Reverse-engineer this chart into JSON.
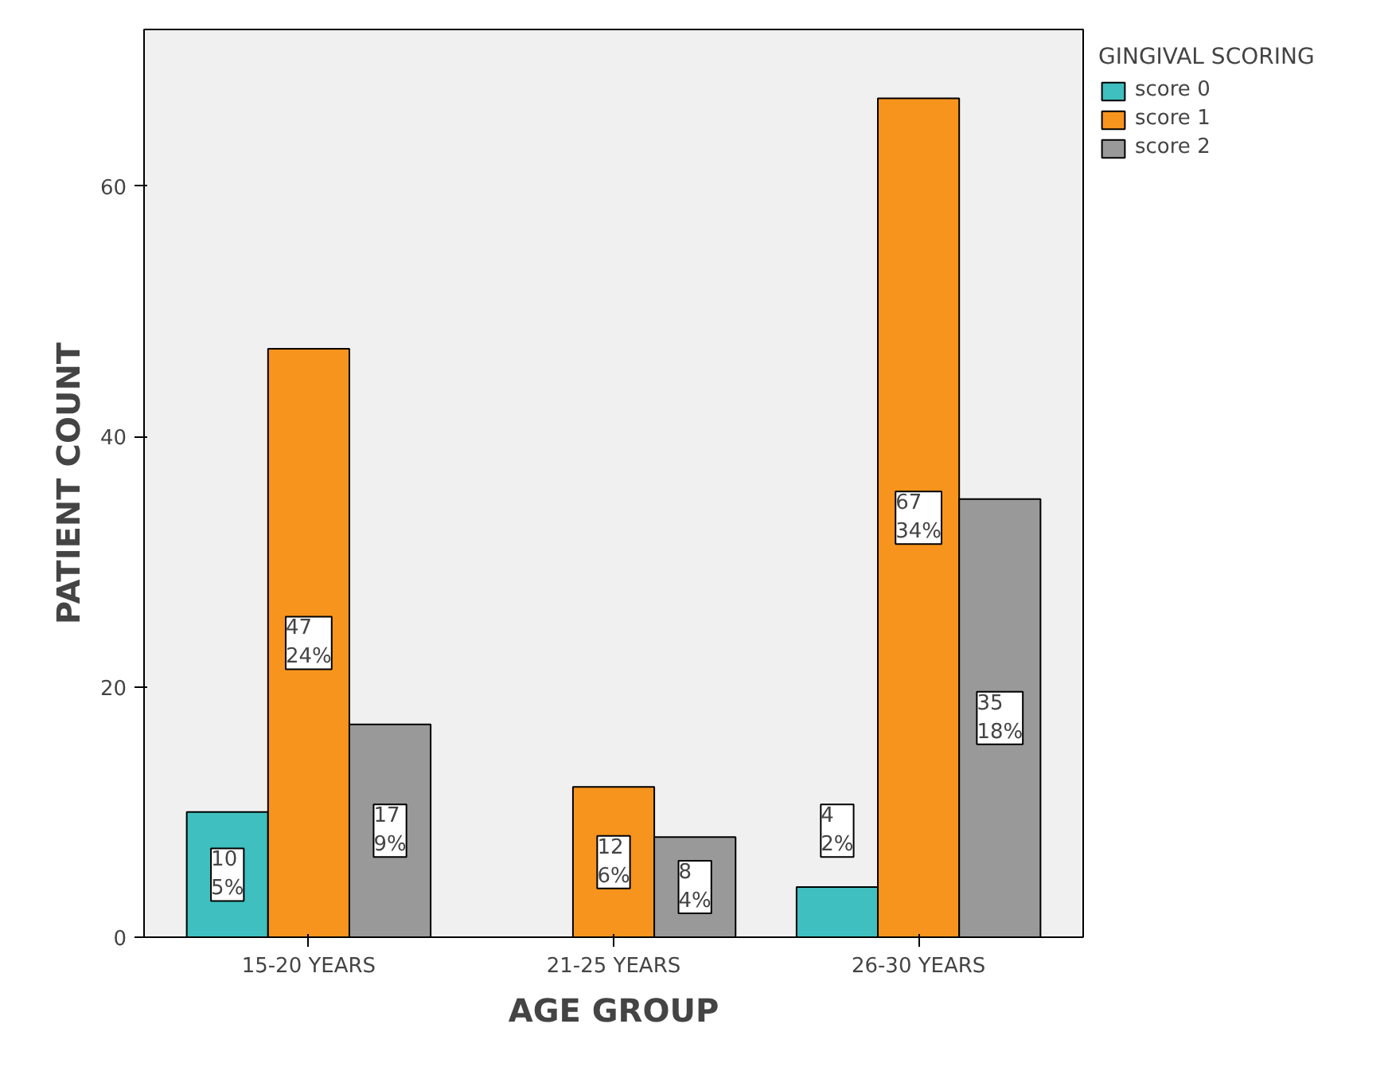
{
  "chart_data": {
    "type": "bar",
    "xlabel": "AGE GROUP",
    "ylabel": "PATIENT COUNT",
    "legend_title": "GINGIVAL SCORING",
    "categories": [
      "15-20 YEARS",
      "21-25 YEARS",
      "26-30 YEARS"
    ],
    "series": [
      {
        "name": "score 0",
        "color": "#3fbfbf",
        "values": [
          10,
          null,
          4
        ],
        "value_labels": [
          "10\n5%",
          null,
          "4\n2%"
        ]
      },
      {
        "name": "score 1",
        "color": "#f7941d",
        "values": [
          47,
          12,
          67
        ],
        "value_labels": [
          "47\n24%",
          "12\n6%",
          "67\n34%"
        ]
      },
      {
        "name": "score 2",
        "color": "#999999",
        "values": [
          17,
          8,
          35
        ],
        "value_labels": [
          "17\n9%",
          "8\n4%",
          "35\n18%"
        ]
      }
    ],
    "ylim": [
      0,
      72.5
    ],
    "yticks": [
      0,
      20,
      40,
      60
    ],
    "grid": false,
    "legend": "top right"
  }
}
